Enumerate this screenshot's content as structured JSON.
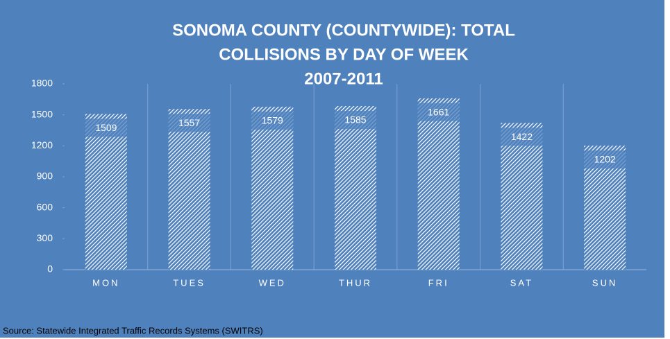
{
  "chart_data": {
    "type": "bar",
    "title_lines": [
      "SONOMA COUNTY (COUNTYWIDE):  TOTAL",
      "COLLISIONS  BY DAY OF WEEK",
      "2007-2011"
    ],
    "categories": [
      "MON",
      "TUES",
      "WED",
      "THUR",
      "FRI",
      "SAT",
      "SUN"
    ],
    "values": [
      1509,
      1557,
      1579,
      1585,
      1661,
      1422,
      1202
    ],
    "color": "#ffffff",
    "background": "#4f81bd",
    "ylim": [
      0,
      1800
    ],
    "yticks": [
      0,
      300,
      600,
      900,
      1200,
      1500,
      1800
    ],
    "source": "Source: Statewide Integrated Traffic Records Systems (SWITRS)"
  }
}
